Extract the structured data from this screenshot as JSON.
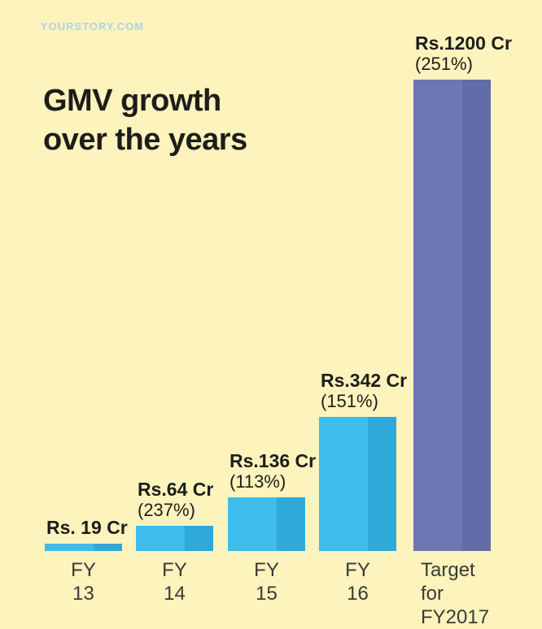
{
  "page": {
    "watermark": "YOURSTORY.COM"
  },
  "title": {
    "line1": "GMV growth",
    "line2": "over the years"
  },
  "colors": {
    "background": "#fcf3bd",
    "title_text": "#1d1d1b",
    "category_text": "#3a3a38",
    "watermark_text": "#aed2e4",
    "bar_cyan_light": "#3cbdec",
    "bar_cyan_dark": "#2ea9da",
    "bar_purple_light": "#6e77b6",
    "bar_purple_dark": "#636ca9"
  },
  "chart_data": {
    "type": "bar",
    "title": "GMV growth over the years",
    "xlabel": "",
    "ylabel": "",
    "ylim": [
      0,
      1200
    ],
    "grid": false,
    "legend": false,
    "unit": "Rs. Cr",
    "categories": [
      "FY 13",
      "FY 14",
      "FY 15",
      "FY 16",
      "Target for FY2017"
    ],
    "values": [
      19,
      64,
      136,
      342,
      1200
    ],
    "points": [
      {
        "id": "fy13",
        "category_lines": [
          "FY 13"
        ],
        "value": 19,
        "value_label": "Rs. 19 Cr",
        "pct_label": "",
        "color_light": "#3cbdec",
        "color_dark": "#2ea9da"
      },
      {
        "id": "fy14",
        "category_lines": [
          "FY 14"
        ],
        "value": 64,
        "value_label": "Rs.64 Cr",
        "pct_label": "(237%)",
        "color_light": "#3cbdec",
        "color_dark": "#2ea9da"
      },
      {
        "id": "fy15",
        "category_lines": [
          "FY 15"
        ],
        "value": 136,
        "value_label": "Rs.136 Cr",
        "pct_label": "(113%)",
        "color_light": "#3cbdec",
        "color_dark": "#2ea9da"
      },
      {
        "id": "fy16",
        "category_lines": [
          "FY 16"
        ],
        "value": 342,
        "value_label": "Rs.342 Cr",
        "pct_label": "(151%)",
        "color_light": "#3cbdec",
        "color_dark": "#2ea9da"
      },
      {
        "id": "target-fy2017",
        "category_lines": [
          "Target for",
          "FY2017"
        ],
        "value": 1200,
        "value_label": "Rs.1200 Cr",
        "pct_label": "(251%)",
        "color_light": "#6e77b6",
        "color_dark": "#636ca9"
      }
    ]
  }
}
